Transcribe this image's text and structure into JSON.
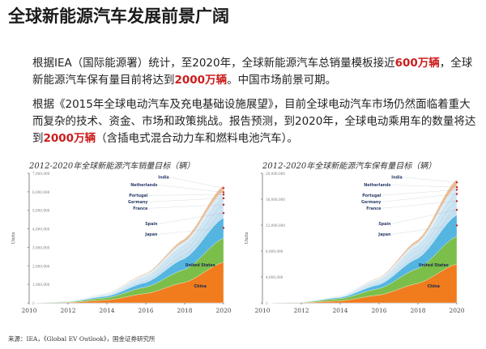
{
  "title": "全球新能源汽车发展前景广阔",
  "paragraph1": {
    "part1": "根据IEA（国际能源署）统计，至2020年，全球新能源汽车总销量模板接近",
    "highlight1": "600万辆",
    "part2": "，全球新能源汽车保有量目前将达到",
    "highlight2": "2000万辆",
    "part3": "。中国市场前景可期。"
  },
  "paragraph2": {
    "part1": "根据《2015年全球电动汽车及充电基础设施展望》，目前全球电动汽车市场仍然面临着重大而复杂的技术、资金、市场和政策挑战。报告预测，到2020年，全球电动乘用车的数量将达到",
    "highlight1": "2000万辆",
    "part2": "（含插电式混合动力车和燃料电池汽车）。"
  },
  "source": "来源：IEA，《Global EV Outlook》，国金证券研究所",
  "colors": {
    "highlight": "#cc1d1d",
    "china": "#f07c1e",
    "united_states": "#7cbe4a",
    "japan": "#36a8dc",
    "europe": "#a9d1e8",
    "others": "#e6b07f",
    "axis": "#8a8a8a",
    "marker": "#c8201c"
  },
  "chart_data": [
    {
      "type": "area",
      "title": "2012-2020年全球新能源汽车销量目标（辆）",
      "ylabel": "Units",
      "x": [
        2010,
        2012,
        2014,
        2016,
        2018,
        2020
      ],
      "x_ticks": [
        "2010",
        "2012",
        "2014",
        "2016",
        "2018",
        "2020"
      ],
      "y_ticks": [
        "0",
        "1,000,000",
        "2,000,000",
        "3,000,000",
        "4,000,000",
        "5,000,000",
        "6,000,000",
        "7,000,000"
      ],
      "ylim": [
        0,
        7000000
      ],
      "stacked": true,
      "series": [
        {
          "name": "China",
          "values": [
            0,
            20000,
            150000,
            500000,
            1100000,
            2200000
          ]
        },
        {
          "name": "United States",
          "values": [
            0,
            30000,
            130000,
            350000,
            700000,
            1300000
          ]
        },
        {
          "name": "Japan",
          "values": [
            0,
            20000,
            80000,
            250000,
            600000,
            1100000
          ]
        },
        {
          "name": "Spain",
          "values": [
            0,
            10000,
            50000,
            150000,
            300000,
            500000
          ]
        },
        {
          "name": "France",
          "values": [
            0,
            10000,
            40000,
            100000,
            250000,
            400000
          ]
        },
        {
          "name": "Germany",
          "values": [
            0,
            10000,
            40000,
            100000,
            200000,
            300000
          ]
        },
        {
          "name": "Portugal",
          "values": [
            0,
            2000,
            10000,
            30000,
            60000,
            100000
          ]
        },
        {
          "name": "Netherlands",
          "values": [
            0,
            5000,
            20000,
            50000,
            100000,
            150000
          ]
        },
        {
          "name": "India",
          "values": [
            0,
            3000,
            15000,
            50000,
            150000,
            300000
          ]
        }
      ]
    },
    {
      "type": "area",
      "title": "2012-2020年全球新能源汽车保有量目标（辆）",
      "ylabel": "Units",
      "x": [
        2010,
        2012,
        2014,
        2016,
        2018,
        2020
      ],
      "x_ticks": [
        "2010",
        "2012",
        "2014",
        "2016",
        "2018",
        "2020"
      ],
      "y_ticks": [
        "0",
        "4,000,000",
        "8,000,000",
        "12,000,000",
        "16,000,000",
        "20,000,000"
      ],
      "ylim": [
        0,
        20000000
      ],
      "stacked": true,
      "series": [
        {
          "name": "China",
          "values": [
            0,
            30000,
            300000,
            1200000,
            3000000,
            6000000
          ]
        },
        {
          "name": "United States",
          "values": [
            0,
            60000,
            350000,
            1000000,
            2300000,
            4300000
          ]
        },
        {
          "name": "Japan",
          "values": [
            0,
            30000,
            180000,
            600000,
            1600000,
            3300000
          ]
        },
        {
          "name": "Spain",
          "values": [
            0,
            10000,
            90000,
            300000,
            800000,
            1500000
          ]
        },
        {
          "name": "France",
          "values": [
            0,
            10000,
            80000,
            250000,
            650000,
            1200000
          ]
        },
        {
          "name": "Germany",
          "values": [
            0,
            10000,
            80000,
            250000,
            550000,
            1000000
          ]
        },
        {
          "name": "Portugal",
          "values": [
            0,
            2000,
            15000,
            60000,
            150000,
            300000
          ]
        },
        {
          "name": "Netherlands",
          "values": [
            0,
            5000,
            40000,
            130000,
            300000,
            500000
          ]
        },
        {
          "name": "India",
          "values": [
            0,
            3000,
            20000,
            100000,
            400000,
            1000000
          ]
        }
      ]
    }
  ]
}
